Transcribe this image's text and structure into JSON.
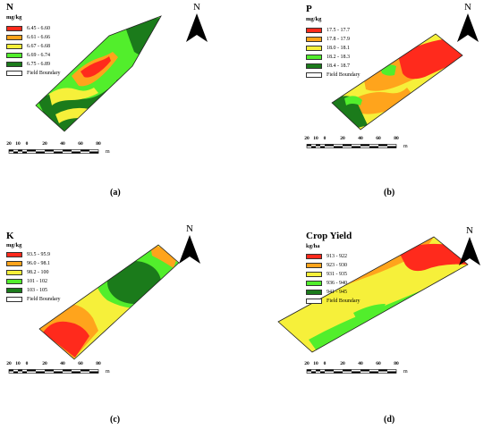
{
  "panels": [
    {
      "id": "N",
      "title": "N",
      "unit": "mg/kg",
      "caption": "(a)",
      "north": "N",
      "legend": [
        {
          "label": "6.45 - 6.60",
          "color": "#ff2a1c"
        },
        {
          "label": "6.61 - 6.66",
          "color": "#ffa41c"
        },
        {
          "label": "6.67 - 6.68",
          "color": "#f6f03a"
        },
        {
          "label": "6.69 - 6.74",
          "color": "#52ee2c"
        },
        {
          "label": "6.75 - 6.89",
          "color": "#1b7b1b"
        },
        {
          "label": "Field Boundary",
          "color": "#ffffff"
        }
      ],
      "scale": {
        "ticks": [
          "20",
          "10",
          "0",
          "20",
          "40",
          "60",
          "80"
        ],
        "unit": "m"
      }
    },
    {
      "id": "P",
      "title": "P",
      "unit": "mg/kg",
      "caption": "(b)",
      "north": "N",
      "legend": [
        {
          "label": "17.5 - 17.7",
          "color": "#ff2a1c"
        },
        {
          "label": "17.8 - 17.9",
          "color": "#ffa41c"
        },
        {
          "label": "18.0 - 18.1",
          "color": "#f6f03a"
        },
        {
          "label": "18.2 - 18.3",
          "color": "#52ee2c"
        },
        {
          "label": "18.4 - 18.7",
          "color": "#1b7b1b"
        },
        {
          "label": "Field Boundary",
          "color": "#ffffff"
        }
      ],
      "scale": {
        "ticks": [
          "20",
          "10",
          "0",
          "20",
          "40",
          "60",
          "80"
        ],
        "unit": "m"
      }
    },
    {
      "id": "K",
      "title": "K",
      "unit": "mg/kg",
      "caption": "(c)",
      "north": "N",
      "legend": [
        {
          "label": "93.5 - 95.9",
          "color": "#ff2a1c"
        },
        {
          "label": "96.0 - 98.1",
          "color": "#ffa41c"
        },
        {
          "label": "98.2 - 100",
          "color": "#f6f03a"
        },
        {
          "label": "101 - 102",
          "color": "#52ee2c"
        },
        {
          "label": "103 - 105",
          "color": "#1b7b1b"
        },
        {
          "label": "Field Boundary",
          "color": "#ffffff"
        }
      ],
      "scale": {
        "ticks": [
          "20",
          "10",
          "0",
          "20",
          "40",
          "60",
          "80"
        ],
        "unit": "m"
      }
    },
    {
      "id": "Yield",
      "title": "Crop Yield",
      "unit": "kg/ha",
      "caption": "(d)",
      "north": "N",
      "legend": [
        {
          "label": "913 - 922",
          "color": "#ff2a1c"
        },
        {
          "label": "923 - 930",
          "color": "#ffa41c"
        },
        {
          "label": "931 - 935",
          "color": "#f6f03a"
        },
        {
          "label": "936 - 940",
          "color": "#52ee2c"
        },
        {
          "label": "941 - 945",
          "color": "#1b7b1b"
        },
        {
          "label": "Field Boundary",
          "color": "#ffffff"
        }
      ],
      "scale": {
        "ticks": [
          "20",
          "10",
          "0",
          "20",
          "40",
          "60",
          "80"
        ],
        "unit": "m"
      }
    }
  ]
}
